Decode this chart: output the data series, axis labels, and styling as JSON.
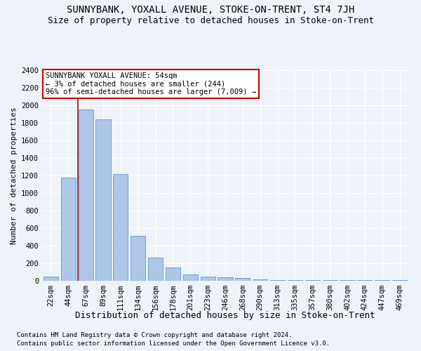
{
  "title1": "SUNNYBANK, YOXALL AVENUE, STOKE-ON-TRENT, ST4 7JH",
  "title2": "Size of property relative to detached houses in Stoke-on-Trent",
  "xlabel": "Distribution of detached houses by size in Stoke-on-Trent",
  "ylabel": "Number of detached properties",
  "categories": [
    "22sqm",
    "44sqm",
    "67sqm",
    "89sqm",
    "111sqm",
    "134sqm",
    "156sqm",
    "178sqm",
    "201sqm",
    "223sqm",
    "246sqm",
    "268sqm",
    "290sqm",
    "313sqm",
    "335sqm",
    "357sqm",
    "380sqm",
    "402sqm",
    "424sqm",
    "447sqm",
    "469sqm"
  ],
  "values": [
    50,
    1175,
    1950,
    1840,
    1215,
    510,
    265,
    150,
    75,
    45,
    40,
    30,
    15,
    10,
    10,
    5,
    5,
    5,
    5,
    5,
    5
  ],
  "bar_color": "#aec6e8",
  "bar_edge_color": "#5b9bd5",
  "vline_x": 1.55,
  "annotation_box_text": "SUNNYBANK YOXALL AVENUE: 54sqm\n← 3% of detached houses are smaller (244)\n96% of semi-detached houses are larger (7,009) →",
  "annotation_box_color": "#ffffff",
  "annotation_box_edge_color": "#cc0000",
  "vline_color": "#cc0000",
  "footer1": "Contains HM Land Registry data © Crown copyright and database right 2024.",
  "footer2": "Contains public sector information licensed under the Open Government Licence v3.0.",
  "bg_color": "#eef2f9",
  "plot_bg_color": "#eef2f9",
  "ylim": [
    0,
    2400
  ],
  "yticks": [
    0,
    200,
    400,
    600,
    800,
    1000,
    1200,
    1400,
    1600,
    1800,
    2000,
    2200,
    2400
  ],
  "title1_fontsize": 10,
  "title2_fontsize": 9,
  "xlabel_fontsize": 9,
  "ylabel_fontsize": 8,
  "tick_fontsize": 7.5,
  "annot_fontsize": 7.5,
  "footer_fontsize": 6.5
}
